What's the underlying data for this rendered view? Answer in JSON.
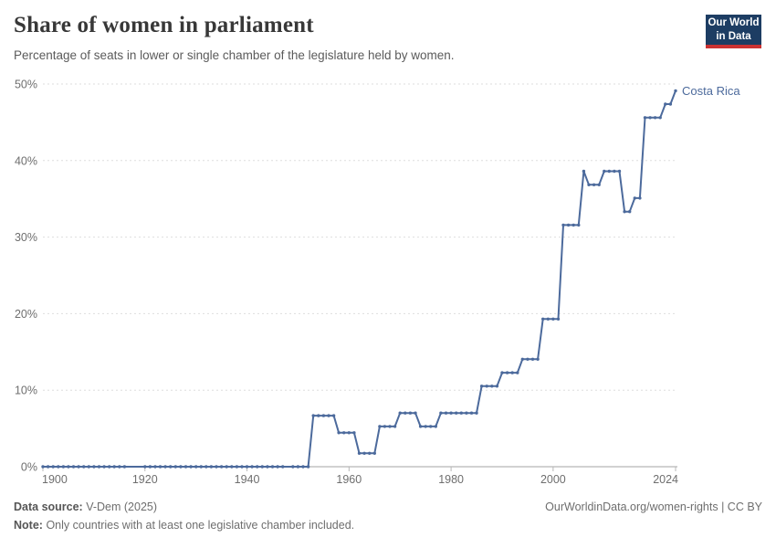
{
  "header": {
    "title": "Share of women in parliament",
    "subtitle": "Percentage of seats in lower or single chamber of the legislature held by women.",
    "logo": {
      "line1": "Our World",
      "line2": "in Data"
    }
  },
  "colors": {
    "line": "#4C6A9C",
    "logo_bg": "#1D3D63",
    "logo_bar": "#CB3232",
    "gridline": "#dedede",
    "axis": "#a3a3a3",
    "tick": "#b8b8b8",
    "axis_text": "#6e6e6e"
  },
  "chart_data": {
    "type": "line",
    "title": "Share of women in parliament",
    "entity": "Costa Rica",
    "unit": "%",
    "x_range": [
      1900,
      2024
    ],
    "y_range": [
      0,
      50
    ],
    "y_ticks": [
      0,
      10,
      20,
      30,
      40,
      50
    ],
    "y_tick_labels": [
      "0%",
      "10%",
      "20%",
      "30%",
      "40%",
      "50%"
    ],
    "x_ticks": [
      1900,
      1920,
      1940,
      1960,
      1980,
      2000,
      2024
    ],
    "x_tick_labels": [
      "1900",
      "1920",
      "1940",
      "1960",
      "1980",
      "2000",
      "2024"
    ],
    "grid": "horizontal-dashed",
    "legend_position": "end-of-line-label",
    "markers": "dot-per-year",
    "line_color": "#4C6A9C",
    "missing_years": [
      1917,
      1918,
      1919,
      1948
    ],
    "segments": [
      {
        "from": 1900,
        "to": 1916,
        "value": 0
      },
      {
        "from": 1920,
        "to": 1947,
        "value": 0
      },
      {
        "from": 1949,
        "to": 1952,
        "value": 0
      },
      {
        "from": 1953,
        "to": 1957,
        "value": 6.67
      },
      {
        "from": 1958,
        "to": 1961,
        "value": 4.44
      },
      {
        "from": 1962,
        "to": 1965,
        "value": 1.75
      },
      {
        "from": 1966,
        "to": 1969,
        "value": 5.26
      },
      {
        "from": 1970,
        "to": 1973,
        "value": 7.02
      },
      {
        "from": 1974,
        "to": 1977,
        "value": 5.26
      },
      {
        "from": 1978,
        "to": 1985,
        "value": 7.02
      },
      {
        "from": 1986,
        "to": 1989,
        "value": 10.53
      },
      {
        "from": 1990,
        "to": 1993,
        "value": 12.28
      },
      {
        "from": 1994,
        "to": 1997,
        "value": 14.04
      },
      {
        "from": 1998,
        "to": 2001,
        "value": 19.3
      },
      {
        "from": 2002,
        "to": 2005,
        "value": 31.58
      },
      {
        "from": 2006,
        "to": 2006,
        "value": 38.6
      },
      {
        "from": 2007,
        "to": 2009,
        "value": 36.84
      },
      {
        "from": 2010,
        "to": 2013,
        "value": 38.6
      },
      {
        "from": 2014,
        "to": 2015,
        "value": 33.33
      },
      {
        "from": 2016,
        "to": 2017,
        "value": 35.09
      },
      {
        "from": 2018,
        "to": 2021,
        "value": 45.61
      },
      {
        "from": 2022,
        "to": 2023,
        "value": 47.37
      },
      {
        "from": 2024,
        "to": 2024,
        "value": 49.12
      }
    ]
  },
  "footer": {
    "source_label": "Data source:",
    "source_value": "V-Dem (2025)",
    "rights": "OurWorldinData.org/women-rights | CC BY",
    "note_label": "Note:",
    "note_value": "Only countries with at least one legislative chamber included."
  }
}
